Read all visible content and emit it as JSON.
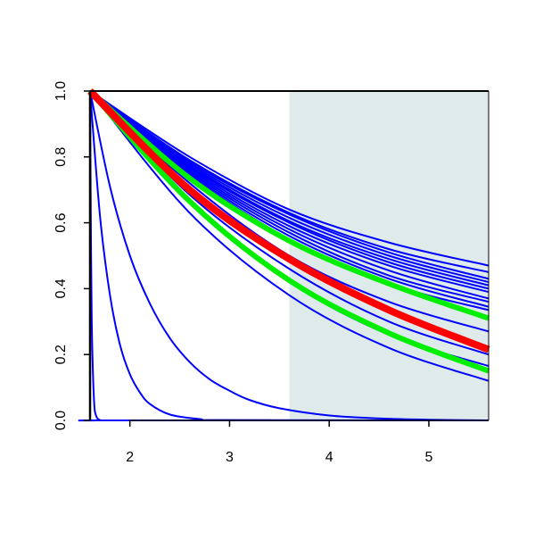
{
  "chart_data": {
    "type": "line",
    "title": "",
    "xlabel": "",
    "ylabel": "",
    "xlim": [
      1.6,
      5.6
    ],
    "ylim": [
      0.0,
      1.0
    ],
    "x_ticks": [
      2,
      3,
      4,
      5
    ],
    "x_tick_labels": [
      "2",
      "3",
      "4",
      "5"
    ],
    "y_ticks": [
      0.0,
      0.2,
      0.4,
      0.6,
      0.8,
      1.0
    ],
    "y_tick_labels": [
      "0.0",
      "0.2",
      "0.4",
      "0.6",
      "0.8",
      "1.0"
    ],
    "grid": false,
    "legend": "none",
    "shaded_region": {
      "x_start": 3.6,
      "x_end": 5.6,
      "color": "#dfebeb"
    },
    "colors": {
      "blue": "#0000ff",
      "red": "#ff0000",
      "green": "#00ee00",
      "axis": "#000000"
    },
    "x_start": 1.6,
    "series": [
      {
        "color": "blue",
        "width": 2,
        "points": [
          [
            1.6,
            1.0
          ],
          [
            1.61,
            0.5
          ],
          [
            1.62,
            0.25
          ],
          [
            1.64,
            0.06
          ],
          [
            1.66,
            0.015
          ],
          [
            1.7,
            0.001
          ],
          [
            1.8,
            0.0
          ],
          [
            5.6,
            0.0
          ]
        ]
      },
      {
        "color": "blue",
        "width": 2,
        "points": [
          [
            1.6,
            1.0
          ],
          [
            1.7,
            0.62
          ],
          [
            1.8,
            0.38
          ],
          [
            1.9,
            0.23
          ],
          [
            2.0,
            0.14
          ],
          [
            2.1,
            0.085
          ],
          [
            2.2,
            0.05
          ],
          [
            2.4,
            0.018
          ],
          [
            2.7,
            0.004
          ],
          [
            3.0,
            0.001
          ],
          [
            5.6,
            0.0
          ]
        ]
      },
      {
        "color": "blue",
        "width": 2,
        "points": [
          [
            1.6,
            1.0
          ],
          [
            1.8,
            0.71
          ],
          [
            2.0,
            0.5
          ],
          [
            2.2,
            0.355
          ],
          [
            2.4,
            0.25
          ],
          [
            2.6,
            0.177
          ],
          [
            2.8,
            0.125
          ],
          [
            3.0,
            0.09
          ],
          [
            3.2,
            0.062
          ],
          [
            3.5,
            0.037
          ],
          [
            4.0,
            0.015
          ],
          [
            4.5,
            0.006
          ],
          [
            5.0,
            0.002
          ],
          [
            5.6,
            0.0
          ]
        ]
      },
      {
        "color": "blue",
        "width": 2,
        "points": [
          [
            1.6,
            1.0
          ],
          [
            2.6,
            0.8
          ],
          [
            3.6,
            0.64
          ],
          [
            4.6,
            0.54
          ],
          [
            5.6,
            0.47
          ]
        ]
      },
      {
        "color": "blue",
        "width": 2,
        "points": [
          [
            1.6,
            1.0
          ],
          [
            2.6,
            0.79
          ],
          [
            3.6,
            0.63
          ],
          [
            4.6,
            0.52
          ],
          [
            5.6,
            0.45
          ]
        ]
      },
      {
        "color": "blue",
        "width": 2,
        "points": [
          [
            1.6,
            1.0
          ],
          [
            2.6,
            0.785
          ],
          [
            3.6,
            0.625
          ],
          [
            4.6,
            0.51
          ],
          [
            5.6,
            0.43
          ]
        ]
      },
      {
        "color": "blue",
        "width": 2,
        "points": [
          [
            1.6,
            1.0
          ],
          [
            2.6,
            0.78
          ],
          [
            3.6,
            0.615
          ],
          [
            4.6,
            0.5
          ],
          [
            5.6,
            0.42
          ]
        ]
      },
      {
        "color": "blue",
        "width": 2,
        "points": [
          [
            1.6,
            1.0
          ],
          [
            2.6,
            0.775
          ],
          [
            3.6,
            0.605
          ],
          [
            4.6,
            0.49
          ],
          [
            5.6,
            0.41
          ]
        ]
      },
      {
        "color": "blue",
        "width": 2,
        "points": [
          [
            1.6,
            1.0
          ],
          [
            2.6,
            0.77
          ],
          [
            3.6,
            0.6
          ],
          [
            4.6,
            0.48
          ],
          [
            5.6,
            0.4
          ]
        ]
      },
      {
        "color": "blue",
        "width": 2,
        "points": [
          [
            1.6,
            1.0
          ],
          [
            2.6,
            0.765
          ],
          [
            3.6,
            0.59
          ],
          [
            4.6,
            0.47
          ],
          [
            5.6,
            0.39
          ]
        ]
      },
      {
        "color": "blue",
        "width": 2,
        "points": [
          [
            1.6,
            1.0
          ],
          [
            2.6,
            0.76
          ],
          [
            3.6,
            0.58
          ],
          [
            4.6,
            0.455
          ],
          [
            5.6,
            0.37
          ]
        ]
      },
      {
        "color": "blue",
        "width": 2,
        "points": [
          [
            1.6,
            1.0
          ],
          [
            2.6,
            0.755
          ],
          [
            3.6,
            0.57
          ],
          [
            4.6,
            0.44
          ],
          [
            5.6,
            0.36
          ]
        ]
      },
      {
        "color": "blue",
        "width": 2,
        "points": [
          [
            1.6,
            1.0
          ],
          [
            2.6,
            0.75
          ],
          [
            3.6,
            0.56
          ],
          [
            4.6,
            0.43
          ],
          [
            5.6,
            0.345
          ]
        ]
      },
      {
        "color": "blue",
        "width": 2,
        "points": [
          [
            1.6,
            1.0
          ],
          [
            2.6,
            0.745
          ],
          [
            3.6,
            0.55
          ],
          [
            4.6,
            0.415
          ],
          [
            5.6,
            0.335
          ]
        ]
      },
      {
        "color": "blue",
        "width": 2,
        "points": [
          [
            1.6,
            1.0
          ],
          [
            2.6,
            0.72
          ],
          [
            3.6,
            0.5
          ],
          [
            4.6,
            0.36
          ],
          [
            5.6,
            0.27
          ]
        ]
      },
      {
        "color": "blue",
        "width": 2,
        "points": [
          [
            1.6,
            1.0
          ],
          [
            2.6,
            0.685
          ],
          [
            3.6,
            0.46
          ],
          [
            4.6,
            0.3
          ],
          [
            5.6,
            0.2
          ]
        ]
      },
      {
        "color": "blue",
        "width": 2,
        "points": [
          [
            1.6,
            1.0
          ],
          [
            2.6,
            0.66
          ],
          [
            3.6,
            0.42
          ],
          [
            4.6,
            0.26
          ],
          [
            5.6,
            0.165
          ]
        ]
      },
      {
        "color": "blue",
        "width": 2,
        "points": [
          [
            1.6,
            1.0
          ],
          [
            2.6,
            0.63
          ],
          [
            3.6,
            0.38
          ],
          [
            4.6,
            0.22
          ],
          [
            5.6,
            0.12
          ]
        ]
      },
      {
        "color": "green",
        "width": 6,
        "points": [
          [
            1.6,
            1.0
          ],
          [
            2.6,
            0.735
          ],
          [
            3.6,
            0.545
          ],
          [
            4.6,
            0.415
          ],
          [
            5.6,
            0.31
          ]
        ]
      },
      {
        "color": "green",
        "width": 6,
        "points": [
          [
            1.6,
            1.0
          ],
          [
            2.6,
            0.665
          ],
          [
            3.6,
            0.425
          ],
          [
            4.6,
            0.265
          ],
          [
            5.6,
            0.15
          ]
        ]
      },
      {
        "color": "red",
        "width": 8,
        "points": [
          [
            1.6,
            1.0
          ],
          [
            2.6,
            0.7
          ],
          [
            3.6,
            0.49
          ],
          [
            4.6,
            0.335
          ],
          [
            5.6,
            0.215
          ]
        ]
      }
    ]
  }
}
